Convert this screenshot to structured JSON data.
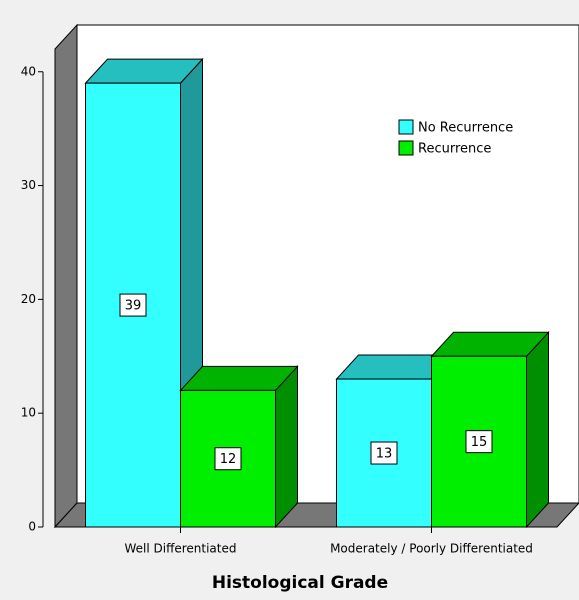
{
  "chart_data": {
    "type": "bar3d",
    "xlabel": "Histological Grade",
    "categories": [
      "Well Differentiated",
      "Moderately / Poorly Differentiated"
    ],
    "series": [
      {
        "name": "No Recurrence",
        "color": "#33ffff",
        "values": [
          39,
          13
        ]
      },
      {
        "name": "Recurrence",
        "color": "#00ee00",
        "values": [
          12,
          15
        ]
      }
    ],
    "ylim": [
      0,
      42
    ],
    "yticks": [
      0,
      10,
      20,
      30,
      40
    ],
    "legend": "upper right"
  }
}
